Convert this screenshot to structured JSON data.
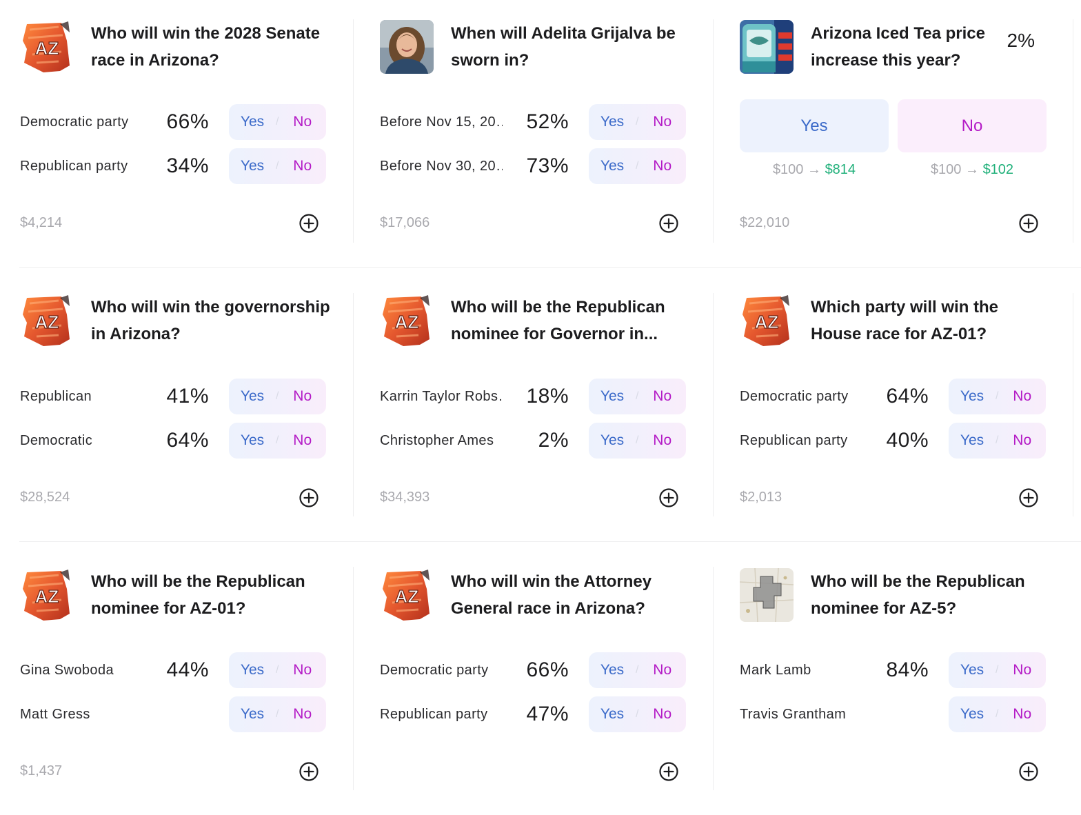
{
  "controls": {
    "yes_label": "Yes",
    "no_label": "No",
    "separator": "/",
    "arrow": "→"
  },
  "colors": {
    "yes": "#3b6ac9",
    "no": "#b41bc6",
    "payout_green": "#20b07a",
    "muted": "#a9a9ae"
  },
  "markets": [
    {
      "title": "Who will win the 2028 Senate race in Arizona?",
      "image": "arizona-state-flag-map",
      "volume": "$4,214",
      "options": [
        {
          "label": "Democratic party",
          "pct": "66%"
        },
        {
          "label": "Republican party",
          "pct": "34%"
        }
      ]
    },
    {
      "title": "When will Adelita Grijalva be sworn in?",
      "image": "candidate-portrait",
      "volume": "$17,066",
      "options": [
        {
          "label": "Before Nov 15, 20…",
          "pct": "52%"
        },
        {
          "label": "Before Nov 30, 20…",
          "pct": "73%"
        }
      ]
    },
    {
      "title": "Arizona Iced Tea price increase this year?",
      "image": "iced-tea-can",
      "volume": "$22,010",
      "pct": "2%",
      "yes_payout": {
        "stake": "$100",
        "return": "$814"
      },
      "no_payout": {
        "stake": "$100",
        "return": "$102"
      }
    },
    {
      "title": "Who will win the governorship in Arizona?",
      "image": "arizona-state-flag-map",
      "volume": "$28,524",
      "options": [
        {
          "label": "Republican",
          "pct": "41%"
        },
        {
          "label": "Democratic",
          "pct": "64%"
        }
      ]
    },
    {
      "title": "Who will be the Republican nominee for Governor in...",
      "image": "arizona-state-flag-map",
      "volume": "$34,393",
      "options": [
        {
          "label": "Karrin Taylor Robs…",
          "pct": "18%"
        },
        {
          "label": "Christopher Ames",
          "pct": "2%"
        }
      ]
    },
    {
      "title": "Which party will win the House race for AZ-01?",
      "image": "arizona-state-flag-map",
      "volume": "$2,013",
      "options": [
        {
          "label": "Democratic party",
          "pct": "64%"
        },
        {
          "label": "Republican party",
          "pct": "40%"
        }
      ]
    },
    {
      "title": "Who will be the Republican nominee for AZ-01?",
      "image": "arizona-state-flag-map",
      "volume": "$1,437",
      "options": [
        {
          "label": "Gina Swoboda",
          "pct": "44%"
        },
        {
          "label": "Matt Gress",
          "pct": ""
        }
      ]
    },
    {
      "title": "Who will win the Attorney General race in Arizona?",
      "image": "arizona-state-flag-map",
      "volume": "",
      "options": [
        {
          "label": "Democratic party",
          "pct": "66%"
        },
        {
          "label": "Republican party",
          "pct": "47%"
        }
      ]
    },
    {
      "title": "Who will be the Republican nominee for AZ-5?",
      "image": "district-map",
      "volume": "",
      "options": [
        {
          "label": "Mark Lamb",
          "pct": "84%"
        },
        {
          "label": "Travis Grantham",
          "pct": ""
        }
      ]
    }
  ]
}
